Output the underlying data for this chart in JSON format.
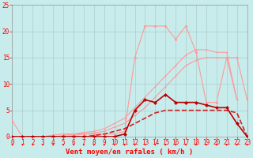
{
  "x": [
    0,
    1,
    2,
    3,
    4,
    5,
    6,
    7,
    8,
    9,
    10,
    11,
    12,
    13,
    14,
    15,
    16,
    17,
    18,
    19,
    20,
    21,
    22,
    23
  ],
  "line_light_pink_zigzag": [
    3,
    0,
    0,
    0,
    0.3,
    0.5,
    0.5,
    0.5,
    0.5,
    0.5,
    0.5,
    1.0,
    15,
    21,
    21,
    21,
    18.5,
    21,
    16,
    6.5,
    6.5,
    15,
    15,
    7
  ],
  "line_straight_upper": [
    0,
    0,
    0,
    0,
    0,
    0.2,
    0.5,
    0.8,
    1.0,
    1.5,
    2.5,
    3.5,
    5.5,
    7.5,
    9.5,
    11.5,
    13.5,
    15.5,
    16.5,
    16.5,
    16,
    16,
    7,
    null
  ],
  "line_straight_lower": [
    0,
    0,
    0,
    0,
    0,
    0,
    0.2,
    0.5,
    0.7,
    1.0,
    1.8,
    2.5,
    4.0,
    5.5,
    7.5,
    9.5,
    11.5,
    13.5,
    14.5,
    15,
    15,
    15,
    7,
    null
  ],
  "line_dark_red_markers": [
    0,
    0,
    0,
    0,
    0,
    0,
    0,
    0,
    0,
    0,
    0,
    0.5,
    5,
    7,
    6.5,
    8,
    6.5,
    6.5,
    6.5,
    6,
    5.5,
    5.5,
    2.5,
    0
  ],
  "line_dashed": [
    0,
    0,
    0,
    0,
    0,
    0,
    0,
    0,
    0.2,
    0.5,
    1,
    1.5,
    2.5,
    3.5,
    4.5,
    5,
    5,
    5,
    5,
    5,
    5,
    5,
    4.5,
    0
  ],
  "color_pink_light": "#FF9999",
  "color_pink_medium": "#FF8888",
  "color_dark_red": "#BB0000",
  "color_dashed": "#CC2222",
  "bg_color": "#C8ECEC",
  "grid_color": "#AACCCC",
  "spine_color": "#999999",
  "tick_color": "#FF0000",
  "label_color": "#FF0000",
  "xlabel": "Vent moyen/en rafales ( km/h )",
  "xlim": [
    0,
    23
  ],
  "ylim": [
    0,
    25
  ],
  "yticks": [
    0,
    5,
    10,
    15,
    20,
    25
  ],
  "xticks": [
    0,
    1,
    2,
    3,
    4,
    5,
    6,
    7,
    8,
    9,
    10,
    11,
    12,
    13,
    14,
    15,
    16,
    17,
    18,
    19,
    20,
    21,
    22,
    23
  ],
  "label_fontsize": 6.5,
  "tick_fontsize": 5.5
}
